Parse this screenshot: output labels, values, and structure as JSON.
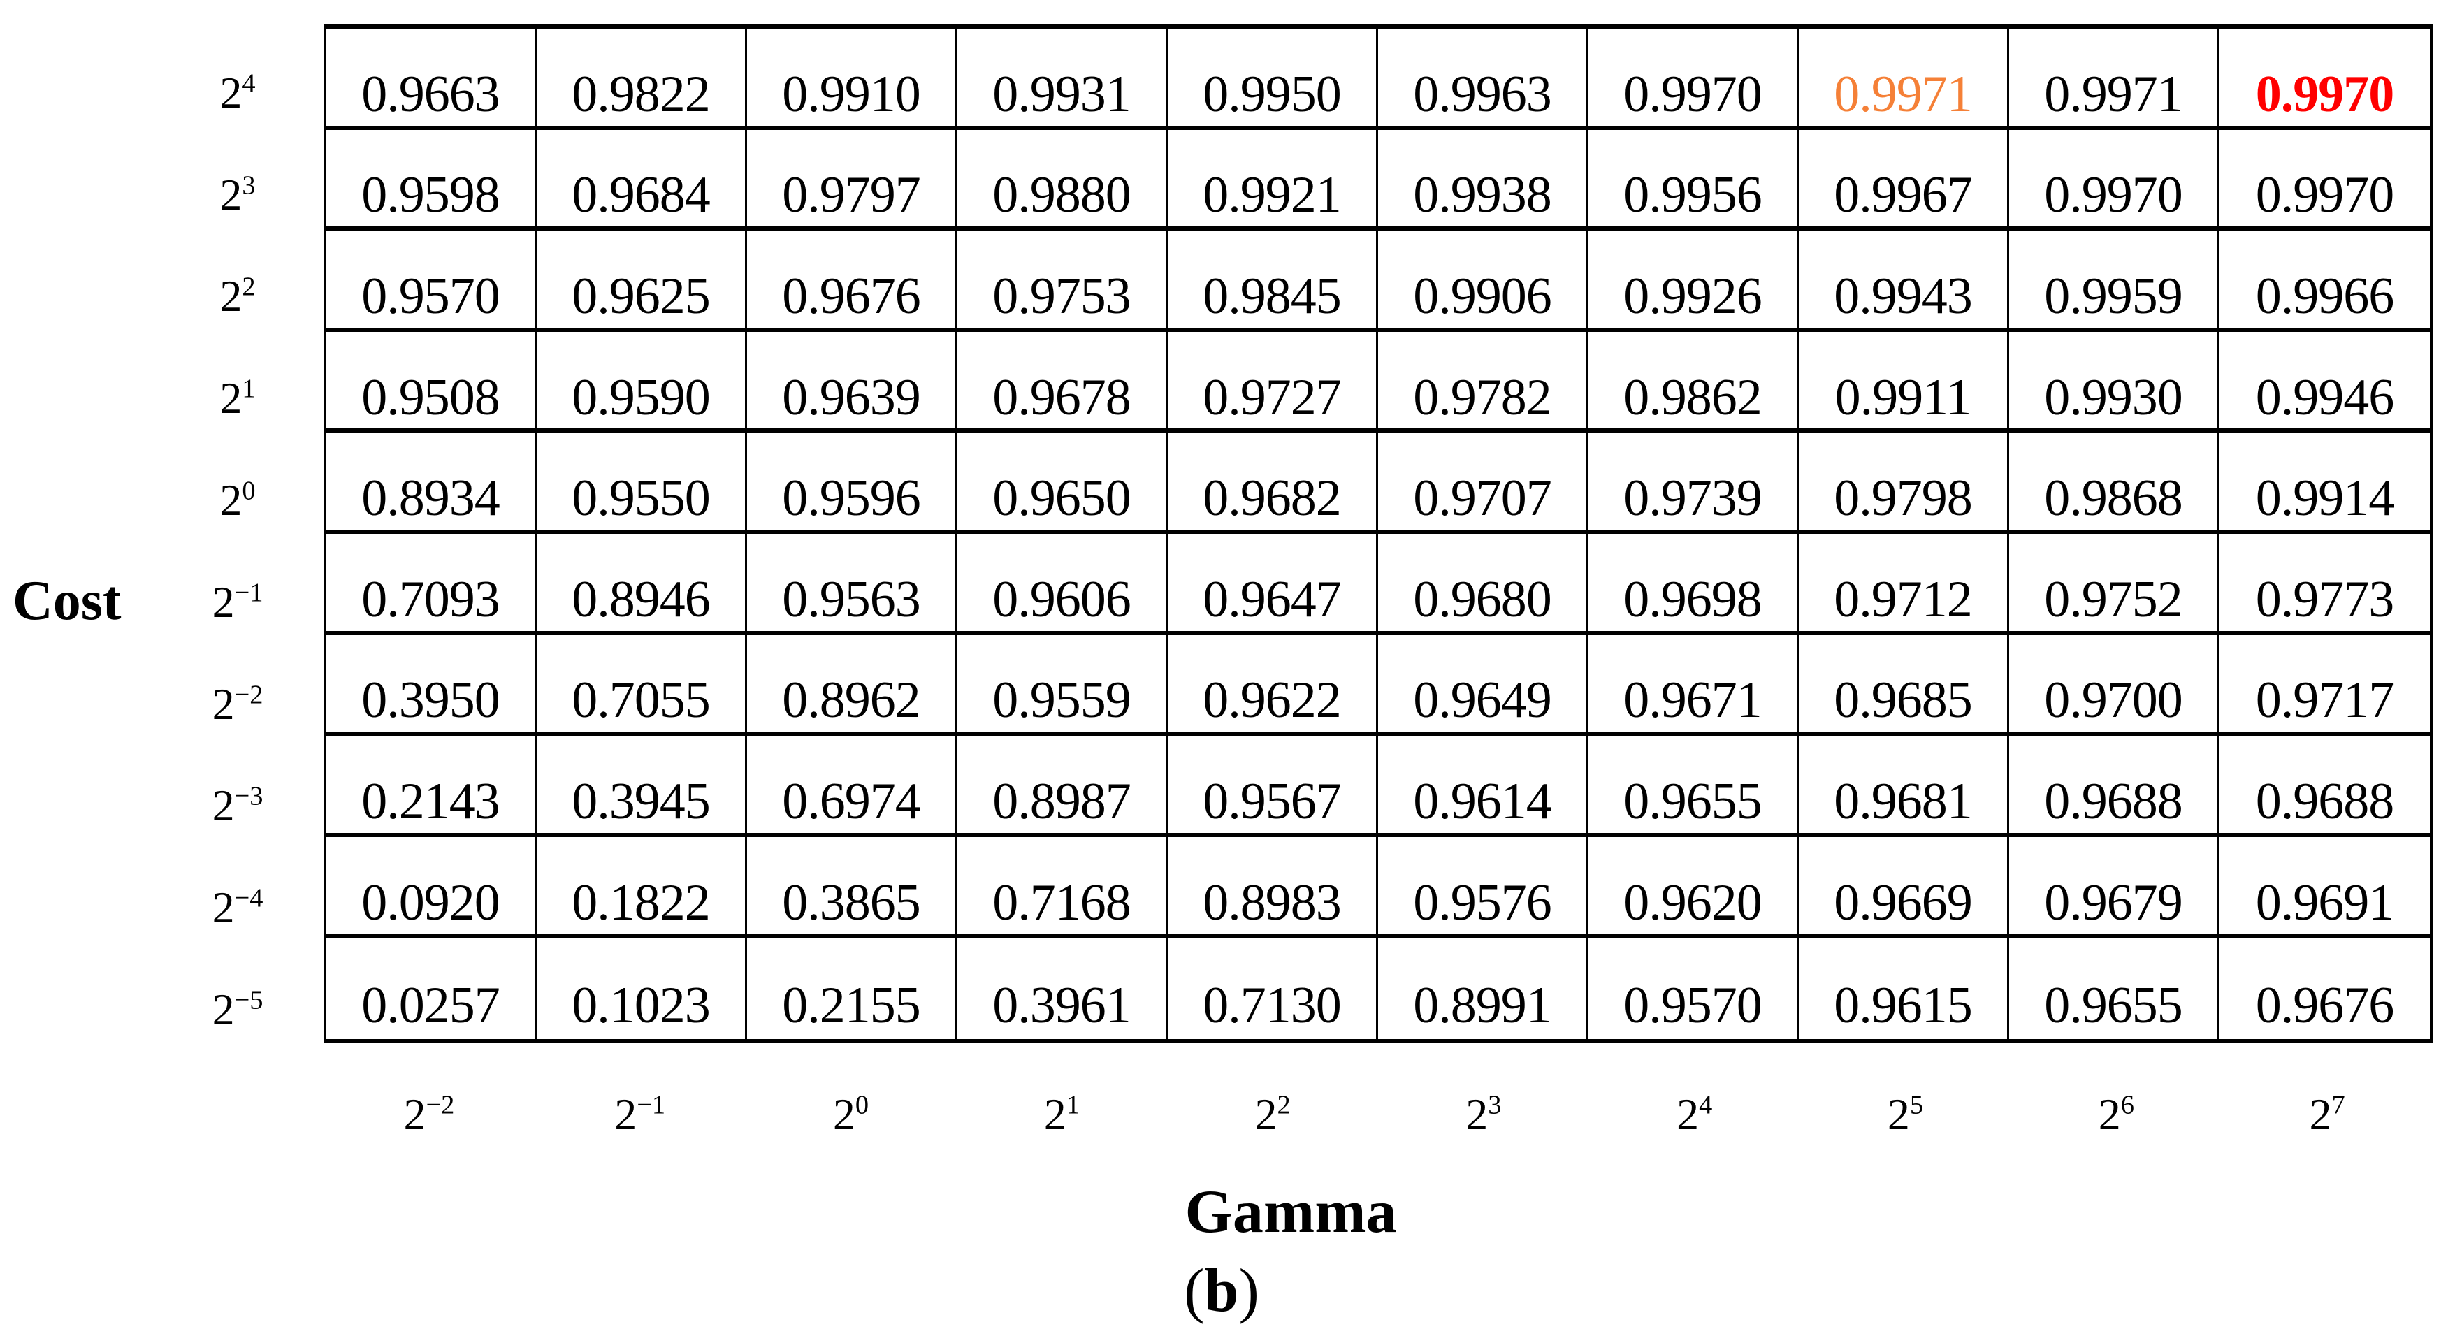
{
  "figure": {
    "caption_open": "(",
    "caption_letter": "b",
    "caption_close": ")"
  },
  "colors": {
    "background": "#FFFFFF",
    "text": "#000000",
    "grid_line": "#000000",
    "highlight_orange": "#F58037",
    "highlight_red": "#FF0000"
  },
  "chart_data": {
    "type": "table",
    "base": "2",
    "row_axis": {
      "label": "Cost",
      "exponents": [
        "4",
        "3",
        "2",
        "1",
        "0",
        "−1",
        "−2",
        "−3",
        "−4",
        "−5"
      ]
    },
    "col_axis": {
      "label": "Gamma",
      "exponents": [
        "−2",
        "−1",
        "0",
        "1",
        "2",
        "3",
        "4",
        "5",
        "6",
        "7"
      ]
    },
    "values": [
      [
        "0.9663",
        "0.9822",
        "0.9910",
        "0.9931",
        "0.9950",
        "0.9963",
        "0.9970",
        "0.9971",
        "0.9971",
        "0.9970"
      ],
      [
        "0.9598",
        "0.9684",
        "0.9797",
        "0.9880",
        "0.9921",
        "0.9938",
        "0.9956",
        "0.9967",
        "0.9970",
        "0.9970"
      ],
      [
        "0.9570",
        "0.9625",
        "0.9676",
        "0.9753",
        "0.9845",
        "0.9906",
        "0.9926",
        "0.9943",
        "0.9959",
        "0.9966"
      ],
      [
        "0.9508",
        "0.9590",
        "0.9639",
        "0.9678",
        "0.9727",
        "0.9782",
        "0.9862",
        "0.9911",
        "0.9930",
        "0.9946"
      ],
      [
        "0.8934",
        "0.9550",
        "0.9596",
        "0.9650",
        "0.9682",
        "0.9707",
        "0.9739",
        "0.9798",
        "0.9868",
        "0.9914"
      ],
      [
        "0.7093",
        "0.8946",
        "0.9563",
        "0.9606",
        "0.9647",
        "0.9680",
        "0.9698",
        "0.9712",
        "0.9752",
        "0.9773"
      ],
      [
        "0.3950",
        "0.7055",
        "0.8962",
        "0.9559",
        "0.9622",
        "0.9649",
        "0.9671",
        "0.9685",
        "0.9700",
        "0.9717"
      ],
      [
        "0.2143",
        "0.3945",
        "0.6974",
        "0.8987",
        "0.9567",
        "0.9614",
        "0.9655",
        "0.9681",
        "0.9688",
        "0.9688"
      ],
      [
        "0.0920",
        "0.1822",
        "0.3865",
        "0.7168",
        "0.8983",
        "0.9576",
        "0.9620",
        "0.9669",
        "0.9679",
        "0.9691"
      ],
      [
        "0.0257",
        "0.1023",
        "0.2155",
        "0.3961",
        "0.7130",
        "0.8991",
        "0.9570",
        "0.9615",
        "0.9655",
        "0.9676"
      ]
    ],
    "highlights": [
      {
        "row": 0,
        "col": 7,
        "value": "0.9971",
        "color": "#F58037",
        "bold": false
      },
      {
        "row": 0,
        "col": 9,
        "value": "0.9970",
        "color": "#FF0000",
        "bold": true
      }
    ]
  }
}
